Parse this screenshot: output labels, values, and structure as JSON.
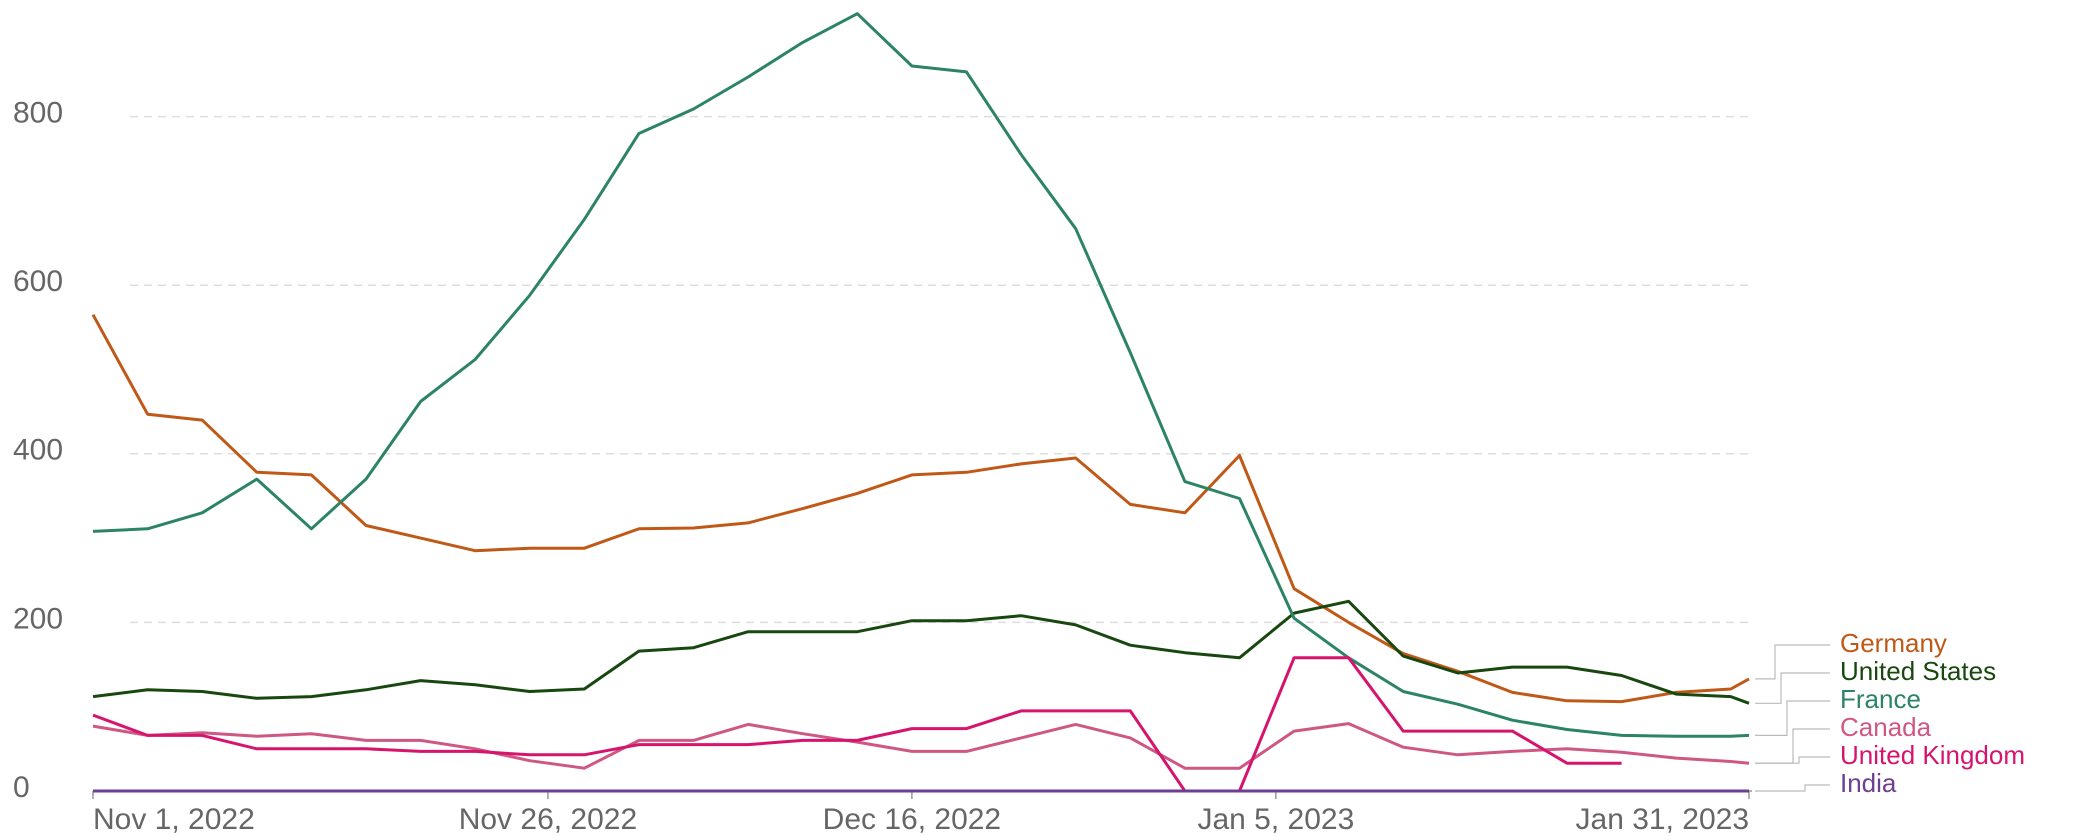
{
  "chart_data": {
    "type": "line",
    "x": [
      "2022-11-01",
      "2022-11-04",
      "2022-11-07",
      "2022-11-10",
      "2022-11-13",
      "2022-11-16",
      "2022-11-19",
      "2022-11-22",
      "2022-11-25",
      "2022-11-28",
      "2022-12-01",
      "2022-12-04",
      "2022-12-07",
      "2022-12-10",
      "2022-12-13",
      "2022-12-16",
      "2022-12-19",
      "2022-12-22",
      "2022-12-25",
      "2022-12-28",
      "2022-12-31",
      "2023-01-03",
      "2023-01-06",
      "2023-01-09",
      "2023-01-12",
      "2023-01-15",
      "2023-01-18",
      "2023-01-21",
      "2023-01-24",
      "2023-01-27",
      "2023-01-30",
      "2023-01-31"
    ],
    "xlim": [
      "2022-11-01",
      "2023-01-31"
    ],
    "xticks": [
      {
        "value": "2022-11-01",
        "label": "Nov 1, 2022"
      },
      {
        "value": "2022-11-26",
        "label": "Nov 26, 2022"
      },
      {
        "value": "2022-12-16",
        "label": "Dec 16, 2022"
      },
      {
        "value": "2023-01-05",
        "label": "Jan 5, 2023"
      },
      {
        "value": "2023-01-31",
        "label": "Jan 31, 2023"
      }
    ],
    "ylim": [
      0,
      930
    ],
    "yticks": [
      0,
      200,
      400,
      600,
      800
    ],
    "grid": true,
    "legend": "right",
    "series": [
      {
        "name": "Germany",
        "color": "#c05917",
        "values": [
          565,
          447,
          440,
          378,
          375,
          315,
          300,
          285,
          288,
          288,
          311,
          312,
          318,
          335,
          353,
          375,
          378,
          388,
          395,
          340,
          330,
          398,
          240,
          200,
          163,
          142,
          117,
          107,
          106,
          117,
          121,
          133
        ]
      },
      {
        "name": "United States",
        "color": "#18470f",
        "values": [
          112,
          120,
          118,
          110,
          112,
          120,
          131,
          126,
          118,
          121,
          166,
          170,
          189,
          189,
          189,
          202,
          202,
          208,
          197,
          173,
          164,
          158,
          211,
          225,
          160,
          140,
          147,
          147,
          137,
          115,
          112,
          104
        ]
      },
      {
        "name": "France",
        "color": "#2c8465",
        "values": [
          308,
          311,
          330,
          370,
          311,
          370,
          462,
          512,
          588,
          678,
          780,
          809,
          847,
          888,
          922,
          860,
          853,
          755,
          667,
          520,
          367,
          347,
          205,
          158,
          118,
          103,
          84,
          73,
          66,
          65,
          65,
          66
        ]
      },
      {
        "name": "Canada",
        "color": "#ce5883",
        "values": [
          77,
          66,
          69,
          65,
          68,
          60,
          60,
          50,
          36,
          27,
          60,
          60,
          79,
          68,
          58,
          47,
          47,
          63,
          79,
          63,
          27,
          27,
          71,
          80,
          52,
          43,
          47,
          50,
          46,
          39,
          35,
          33
        ]
      },
      {
        "name": "United Kingdom",
        "color": "#d6146d",
        "values": [
          90,
          66,
          66,
          50,
          50,
          50,
          47,
          47,
          43,
          43,
          55,
          55,
          55,
          60,
          60,
          74,
          74,
          95,
          95,
          95,
          0,
          0,
          158,
          158,
          71,
          71,
          71,
          33,
          33,
          null,
          null,
          null
        ]
      },
      {
        "name": "India",
        "color": "#6d3e91",
        "values": [
          0,
          0,
          0,
          0,
          0,
          0,
          0,
          0,
          0,
          0,
          0,
          0,
          0,
          0,
          0,
          0,
          0,
          0,
          0,
          0,
          0,
          0,
          0,
          0,
          0,
          0,
          0,
          0,
          0,
          0,
          0,
          0
        ]
      }
    ]
  }
}
